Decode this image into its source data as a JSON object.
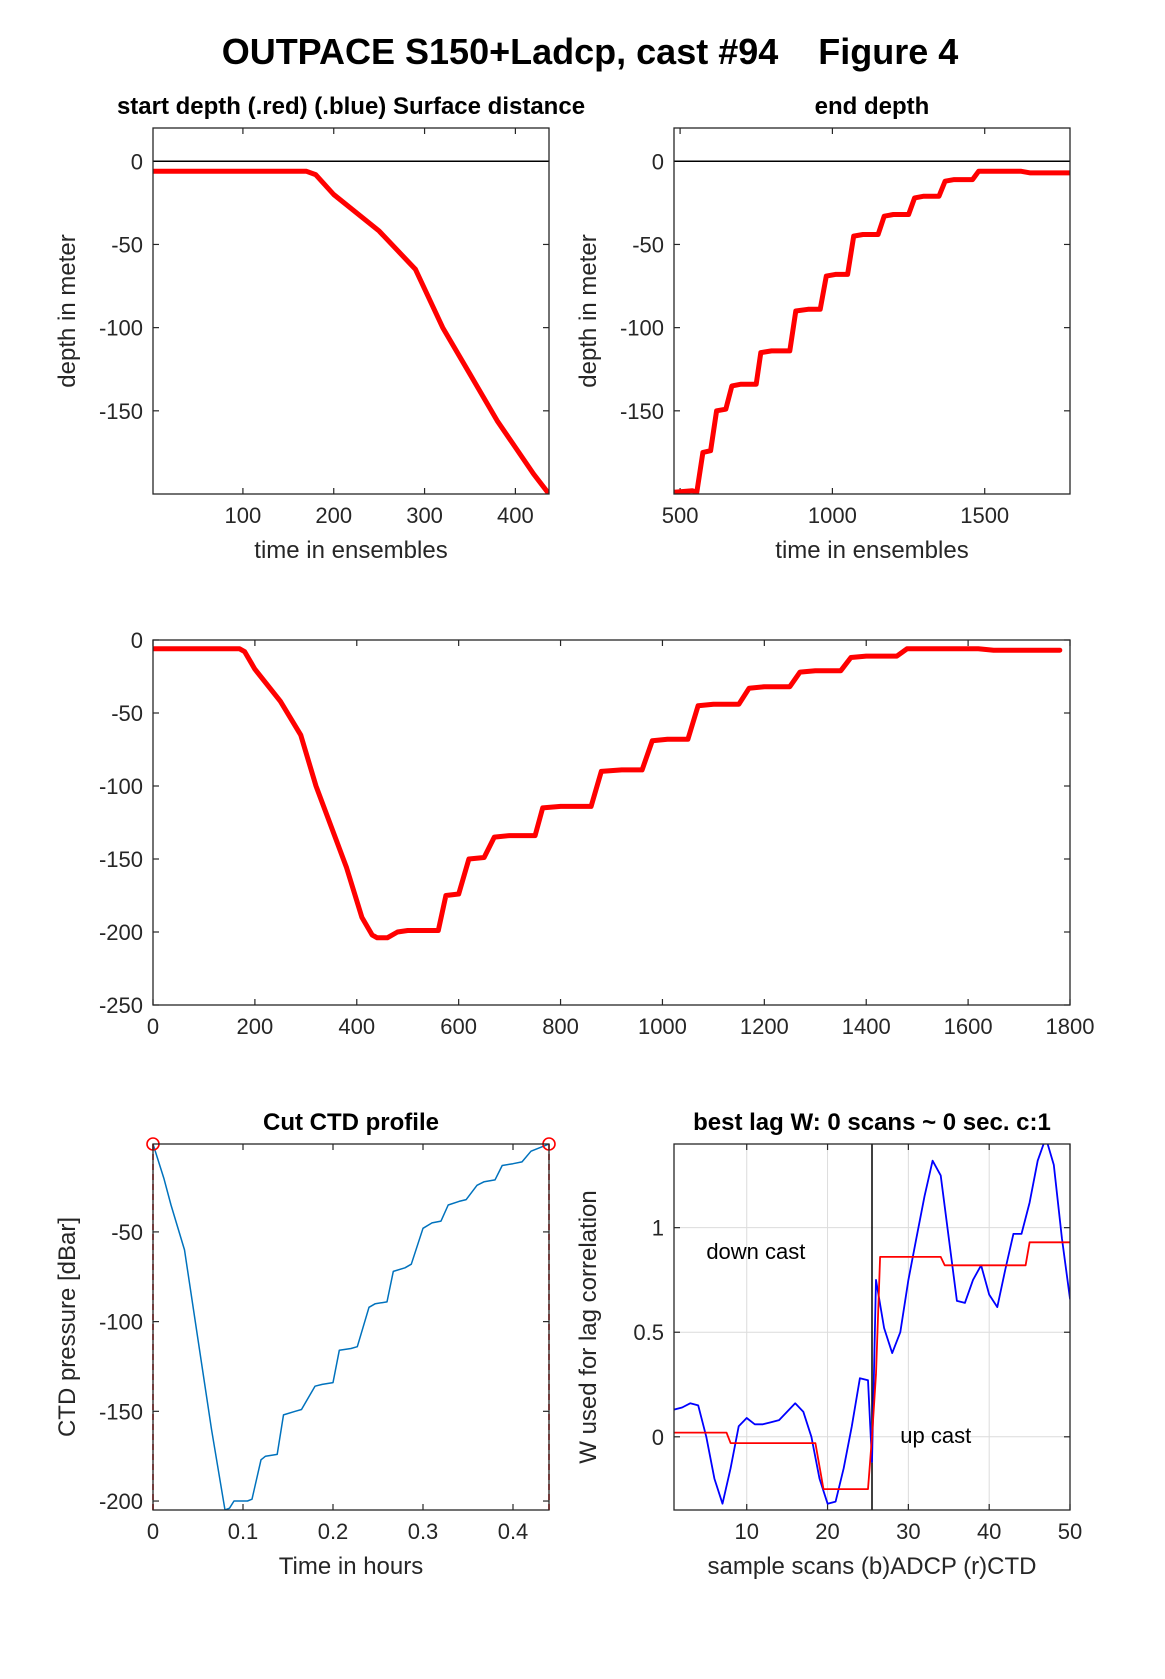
{
  "figure": {
    "title": "OUTPACE S150+Ladcp, cast #94    Figure 4"
  },
  "chart_data": [
    {
      "id": "start",
      "type": "line",
      "title": "start depth (.red) (.blue) Surface distance",
      "xlabel": "time in ensembles",
      "ylabel": "depth in meter",
      "xlim": [
        1,
        437
      ],
      "ylim": [
        -200,
        20
      ],
      "xticks": [
        100,
        200,
        300,
        400
      ],
      "yticks": [
        0,
        -50,
        -100,
        -150
      ],
      "grid": false,
      "hline": 0,
      "series": [
        {
          "color": "#ff0000",
          "width": 5,
          "x": [
            1,
            100,
            170,
            180,
            200,
            250,
            290,
            320,
            350,
            380,
            400,
            420,
            437
          ],
          "y": [
            -6,
            -6,
            -6,
            -8,
            -20,
            -42,
            -65,
            -100,
            -128,
            -156,
            -172,
            -188,
            -200
          ]
        }
      ]
    },
    {
      "id": "end",
      "type": "line",
      "title": "end depth",
      "xlabel": "time in ensembles",
      "ylabel": "depth in meter",
      "xlim": [
        480,
        1780
      ],
      "ylim": [
        -200,
        20
      ],
      "xticks": [
        500,
        1000,
        1500
      ],
      "yticks": [
        0,
        -50,
        -100,
        -150
      ],
      "grid": false,
      "hline": 0,
      "series": [
        {
          "color": "#ff0000",
          "width": 5,
          "x": [
            480,
            540,
            555,
            575,
            600,
            620,
            650,
            670,
            700,
            720,
            750,
            765,
            800,
            820,
            860,
            880,
            920,
            940,
            960,
            980,
            1010,
            1030,
            1050,
            1070,
            1100,
            1120,
            1150,
            1170,
            1200,
            1220,
            1250,
            1270,
            1300,
            1320,
            1350,
            1370,
            1400,
            1420,
            1460,
            1480,
            1540,
            1560,
            1620,
            1650,
            1700,
            1780
          ],
          "y": [
            -199,
            -198,
            -199,
            -175,
            -174,
            -150,
            -149,
            -135,
            -134,
            -134,
            -134,
            -115,
            -114,
            -114,
            -114,
            -90,
            -89,
            -89,
            -89,
            -69,
            -68,
            -68,
            -68,
            -45,
            -44,
            -44,
            -44,
            -33,
            -32,
            -32,
            -32,
            -22,
            -21,
            -21,
            -21,
            -12,
            -11,
            -11,
            -11,
            -6,
            -6,
            -6,
            -6,
            -7,
            -7,
            -7
          ]
        }
      ]
    },
    {
      "id": "full",
      "type": "line",
      "title": "",
      "xlabel": "",
      "ylabel": "",
      "xlim": [
        0,
        1800
      ],
      "ylim": [
        -250,
        0
      ],
      "xticks": [
        0,
        200,
        400,
        600,
        800,
        1000,
        1200,
        1400,
        1600,
        1800
      ],
      "yticks": [
        0,
        -50,
        -100,
        -150,
        -200,
        -250
      ],
      "grid": false,
      "series": [
        {
          "color": "#ff0000",
          "width": 5,
          "x": [
            0,
            100,
            170,
            180,
            200,
            250,
            290,
            320,
            350,
            380,
            410,
            430,
            440,
            460,
            480,
            500,
            540,
            560,
            575,
            600,
            620,
            650,
            670,
            700,
            720,
            750,
            765,
            800,
            820,
            860,
            880,
            920,
            940,
            960,
            980,
            1010,
            1030,
            1050,
            1070,
            1100,
            1120,
            1150,
            1170,
            1200,
            1220,
            1250,
            1270,
            1300,
            1320,
            1350,
            1370,
            1400,
            1420,
            1460,
            1480,
            1540,
            1560,
            1620,
            1650,
            1700,
            1780
          ],
          "y": [
            -6,
            -6,
            -6,
            -8,
            -20,
            -42,
            -65,
            -100,
            -128,
            -156,
            -190,
            -202,
            -204,
            -204,
            -200,
            -199,
            -199,
            -199,
            -175,
            -174,
            -150,
            -149,
            -135,
            -134,
            -134,
            -134,
            -115,
            -114,
            -114,
            -114,
            -90,
            -89,
            -89,
            -89,
            -69,
            -68,
            -68,
            -68,
            -45,
            -44,
            -44,
            -44,
            -33,
            -32,
            -32,
            -32,
            -22,
            -21,
            -21,
            -21,
            -12,
            -11,
            -11,
            -11,
            -6,
            -6,
            -6,
            -6,
            -7,
            -7,
            -7
          ]
        }
      ]
    },
    {
      "id": "cut",
      "type": "line",
      "title": "Cut CTD profile",
      "xlabel": "Time in hours",
      "ylabel": "CTD pressure [dBar]",
      "xlim": [
        0,
        0.44
      ],
      "ylim": [
        -205,
        -1
      ],
      "xticks": [
        0,
        0.1,
        0.2,
        0.3,
        0.4
      ],
      "xtick_labels": [
        "0",
        "0.1",
        "0.2",
        "0.3",
        "0.4"
      ],
      "yticks": [
        -50,
        -100,
        -150,
        -200
      ],
      "grid": false,
      "vlines": [
        0,
        0.44
      ],
      "markers": [
        {
          "x": 0,
          "y": -1
        },
        {
          "x": 0.44,
          "y": -1
        }
      ],
      "series": [
        {
          "color": "#0072bd",
          "width": 1.5,
          "x": [
            0,
            0.012,
            0.02,
            0.035,
            0.05,
            0.065,
            0.08,
            0.085,
            0.09,
            0.105,
            0.11,
            0.12,
            0.125,
            0.138,
            0.145,
            0.158,
            0.165,
            0.18,
            0.188,
            0.2,
            0.207,
            0.22,
            0.227,
            0.24,
            0.247,
            0.26,
            0.267,
            0.28,
            0.287,
            0.3,
            0.31,
            0.32,
            0.328,
            0.34,
            0.348,
            0.36,
            0.368,
            0.38,
            0.388,
            0.4,
            0.41,
            0.42,
            0.435,
            0.44
          ],
          "y": [
            -1,
            -20,
            -35,
            -60,
            -110,
            -160,
            -205,
            -204,
            -200,
            -200,
            -199,
            -177,
            -175,
            -174,
            -152,
            -150,
            -149,
            -136,
            -135,
            -134,
            -116,
            -115,
            -114,
            -92,
            -90,
            -89,
            -72,
            -70,
            -68,
            -48,
            -45,
            -44,
            -35,
            -33,
            -32,
            -24,
            -22,
            -21,
            -13,
            -12,
            -11,
            -5,
            -2,
            -1
          ]
        }
      ]
    },
    {
      "id": "lag",
      "type": "line",
      "title": "best lag W: 0 scans ~ 0 sec.  c:1",
      "xlabel": "sample scans (b)ADCP (r)CTD",
      "ylabel": "W used for lag correlation",
      "xlim": [
        1,
        50
      ],
      "ylim": [
        -0.35,
        1.4
      ],
      "xticks": [
        10,
        20,
        30,
        40,
        50
      ],
      "yticks": [
        0,
        0.5,
        1
      ],
      "ytick_labels": [
        "0",
        "0.5",
        "1"
      ],
      "grid": true,
      "vline": 25.5,
      "annotations": [
        {
          "text": "down cast",
          "x": 5,
          "y": 0.85
        },
        {
          "text": "up cast",
          "x": 29,
          "y": -0.03
        }
      ],
      "series": [
        {
          "color": "#0000ff",
          "width": 1.8,
          "x": [
            1,
            2,
            3,
            4,
            5,
            6,
            7,
            8,
            9,
            10,
            11,
            12,
            13,
            14,
            15,
            16,
            17,
            18,
            19,
            20,
            21,
            22,
            23,
            24,
            25,
            25.5,
            26,
            27,
            28,
            29,
            30,
            31,
            32,
            33,
            34,
            35,
            36,
            37,
            38,
            39,
            40,
            41,
            42,
            43,
            44,
            45,
            46,
            47,
            48,
            49,
            50
          ],
          "y": [
            0.13,
            0.14,
            0.16,
            0.15,
            0.0,
            -0.2,
            -0.32,
            -0.15,
            0.05,
            0.09,
            0.06,
            0.06,
            0.07,
            0.08,
            0.12,
            0.16,
            0.12,
            0.0,
            -0.2,
            -0.32,
            -0.31,
            -0.15,
            0.05,
            0.28,
            0.27,
            -0.12,
            0.75,
            0.52,
            0.4,
            0.5,
            0.75,
            0.95,
            1.15,
            1.32,
            1.25,
            0.95,
            0.65,
            0.64,
            0.75,
            0.82,
            0.68,
            0.62,
            0.8,
            0.97,
            0.97,
            1.12,
            1.32,
            1.43,
            1.3,
            0.95,
            0.66
          ]
        },
        {
          "color": "#ff0000",
          "width": 1.8,
          "x": [
            1,
            7.5,
            8,
            18,
            18.5,
            19.5,
            25,
            25.5,
            26,
            26.5,
            34,
            34.5,
            44.5,
            45,
            50
          ],
          "y": [
            0.02,
            0.02,
            -0.03,
            -0.03,
            -0.03,
            -0.25,
            -0.25,
            0.0,
            0.3,
            0.86,
            0.86,
            0.82,
            0.82,
            0.93,
            0.93
          ]
        }
      ]
    }
  ]
}
